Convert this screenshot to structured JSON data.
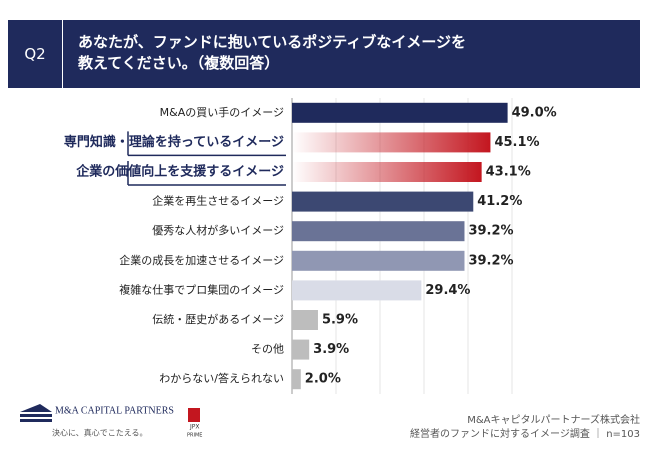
{
  "question": "Q2",
  "chart_data": {
    "type": "bar",
    "orientation": "horizontal",
    "title": "あなたが、ファンドに抱いているポジティブなイメージを\n教えてください。（複数回答）",
    "categories": [
      "M&Aの買い手のイメージ",
      "専門知識・理論を持っているイメージ",
      "企業の価値向上を支援するイメージ",
      "企業を再生させるイメージ",
      "優秀な人材が多いイメージ",
      "企業の成長を加速させるイメージ",
      "複雑な仕事でプロ集団のイメージ",
      "伝統・歴史があるイメージ",
      "その他",
      "わからない/答えられない"
    ],
    "values": [
      49.0,
      45.1,
      43.1,
      41.2,
      39.2,
      39.2,
      29.4,
      5.9,
      3.9,
      2.0
    ],
    "value_labels": [
      "49.0%",
      "45.1%",
      "43.1%",
      "41.2%",
      "39.2%",
      "39.2%",
      "29.4%",
      "5.9%",
      "3.9%",
      "2.0%"
    ],
    "colors": [
      "#1f2a5c",
      "#c3161f",
      "#c3161f",
      "#3c4872",
      "#6a7396",
      "#9097b3",
      "#d9dce7",
      "#bdbdbd",
      "#bdbdbd",
      "#bdbdbd"
    ],
    "highlight": [
      false,
      true,
      true,
      false,
      false,
      false,
      false,
      false,
      false,
      false
    ],
    "xlim": [
      0,
      50
    ],
    "xticks": [
      10,
      20,
      30,
      40,
      50
    ],
    "grid": true
  },
  "footer": {
    "logo": "M&A CAPITAL PARTNERS",
    "tagline": "決心に、真心でこたえる。",
    "jpx": "JPX",
    "prime": "PRIME",
    "company": "M&Aキャピタルパートナーズ株式会社",
    "survey": "経営者のファンドに対するイメージ調査 ｜ n=103"
  }
}
